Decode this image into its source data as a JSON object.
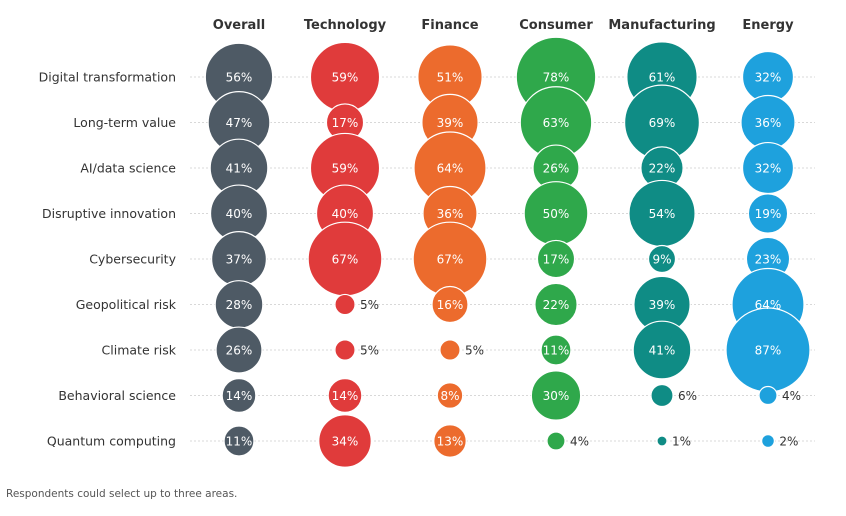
{
  "chart_data": {
    "type": "bubble-matrix",
    "columns": [
      "Overall",
      "Technology",
      "Finance",
      "Consumer",
      "Manufacturing",
      "Energy"
    ],
    "rows": [
      "Digital transformation",
      "Long-term value",
      "AI/data science",
      "Disruptive innovation",
      "Cybersecurity",
      "Geopolitical risk",
      "Climate risk",
      "Behavioral science",
      "Quantum computing"
    ],
    "unit": "%",
    "values": [
      [
        56,
        59,
        51,
        78,
        61,
        32
      ],
      [
        47,
        17,
        39,
        63,
        69,
        36
      ],
      [
        41,
        59,
        64,
        26,
        22,
        32
      ],
      [
        40,
        40,
        36,
        50,
        54,
        19
      ],
      [
        37,
        67,
        67,
        17,
        9,
        23
      ],
      [
        28,
        5,
        16,
        22,
        39,
        64
      ],
      [
        26,
        5,
        5,
        11,
        41,
        87
      ],
      [
        14,
        14,
        8,
        30,
        6,
        4
      ],
      [
        11,
        34,
        13,
        4,
        1,
        2
      ]
    ],
    "colors": [
      "#4e5a65",
      "#e03b3b",
      "#ec6b2d",
      "#2fa84b",
      "#0f8c85",
      "#1ea1dd"
    ],
    "grid": true
  },
  "footnote": "Respondents could select up to three areas."
}
